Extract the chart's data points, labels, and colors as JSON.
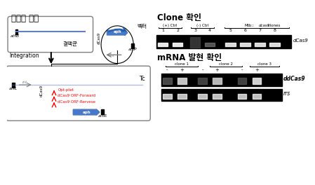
{
  "title_left": "재조합 전략",
  "title_right_top": "Clone 확인",
  "title_right_bottom": "mRNA 발현 확인",
  "label_bacterium": "결핵균",
  "label_vector": "벡터",
  "label_integration": "Integration",
  "label_attB": "attB",
  "label_attP": "attP",
  "label_attL": "attL",
  "label_attR": "attR",
  "label_int": "int",
  "label_aph": "aph",
  "label_dCas9": "dCas9",
  "label_opt_ptet": "Opt-ptet",
  "label_forward": "dCas9 ORF-Forward",
  "label_reverse": "dCas9 ORF-Rervese",
  "clone_confirm_labels": [
    "(+) Ctrl",
    "(-) Ctrl",
    "Mtb::dcas9 clones"
  ],
  "clone_numbers_top": [
    "1",
    "2",
    "3",
    "4",
    "5",
    "6",
    "7",
    "8"
  ],
  "dCas9_label": "dCas9",
  "clone_labels_bottom": [
    "clone 1",
    "clone 2",
    "clone 3"
  ],
  "tc_label": "Tc",
  "plus_minus": [
    "-",
    "+",
    "-",
    "+",
    "-",
    "+"
  ],
  "dCas9_label_bottom": "dCas9",
  "rrs_label": "rrs",
  "bg_color": "#f5f5f2"
}
